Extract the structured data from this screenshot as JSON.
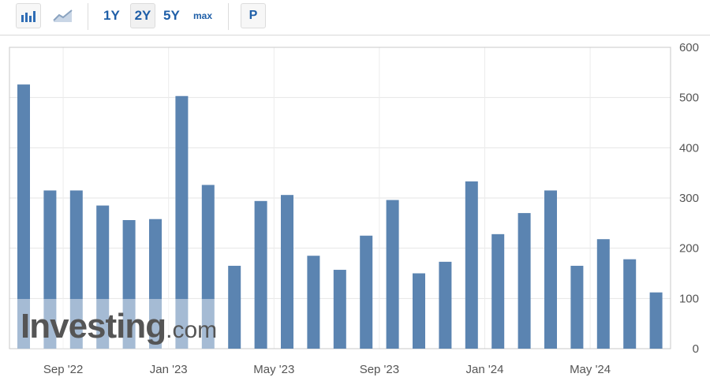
{
  "toolbar": {
    "chart_type_icons": [
      "bar-chart-icon",
      "area-chart-icon"
    ],
    "ranges": [
      "1Y",
      "2Y",
      "5Y",
      "max"
    ],
    "active_range": "2Y",
    "p_label": "P"
  },
  "watermark": {
    "text_main": "Investing",
    "text_suffix": ".com"
  },
  "chart_data": {
    "type": "bar",
    "categories": [
      "Aug '22",
      "Sep '22",
      "Oct '22",
      "Nov '22",
      "Dec '22",
      "Jan '23",
      "Feb '23",
      "Mar '23",
      "Apr '23",
      "May '23",
      "Jun '23",
      "Jul '23",
      "Aug '23",
      "Sep '23",
      "Oct '23",
      "Nov '23",
      "Dec '23",
      "Jan '24",
      "Feb '24",
      "Mar '24",
      "Apr '24",
      "May '24",
      "Jun '24",
      "Jul '24",
      "Aug '24"
    ],
    "values": [
      526,
      315,
      315,
      285,
      256,
      258,
      503,
      326,
      165,
      294,
      306,
      185,
      157,
      225,
      296,
      150,
      173,
      333,
      228,
      270,
      315,
      165,
      218,
      178,
      112
    ],
    "x_tick_labels": [
      "Sep '22",
      "Jan '23",
      "May '23",
      "Sep '23",
      "Jan '24",
      "May '24"
    ],
    "y_ticks": [
      0,
      100,
      200,
      300,
      400,
      500,
      600
    ],
    "ylim": [
      0,
      600
    ],
    "y_axis_position": "right",
    "grid": true,
    "bar_color": "#5b84b1",
    "title": "",
    "xlabel": "",
    "ylabel": ""
  }
}
